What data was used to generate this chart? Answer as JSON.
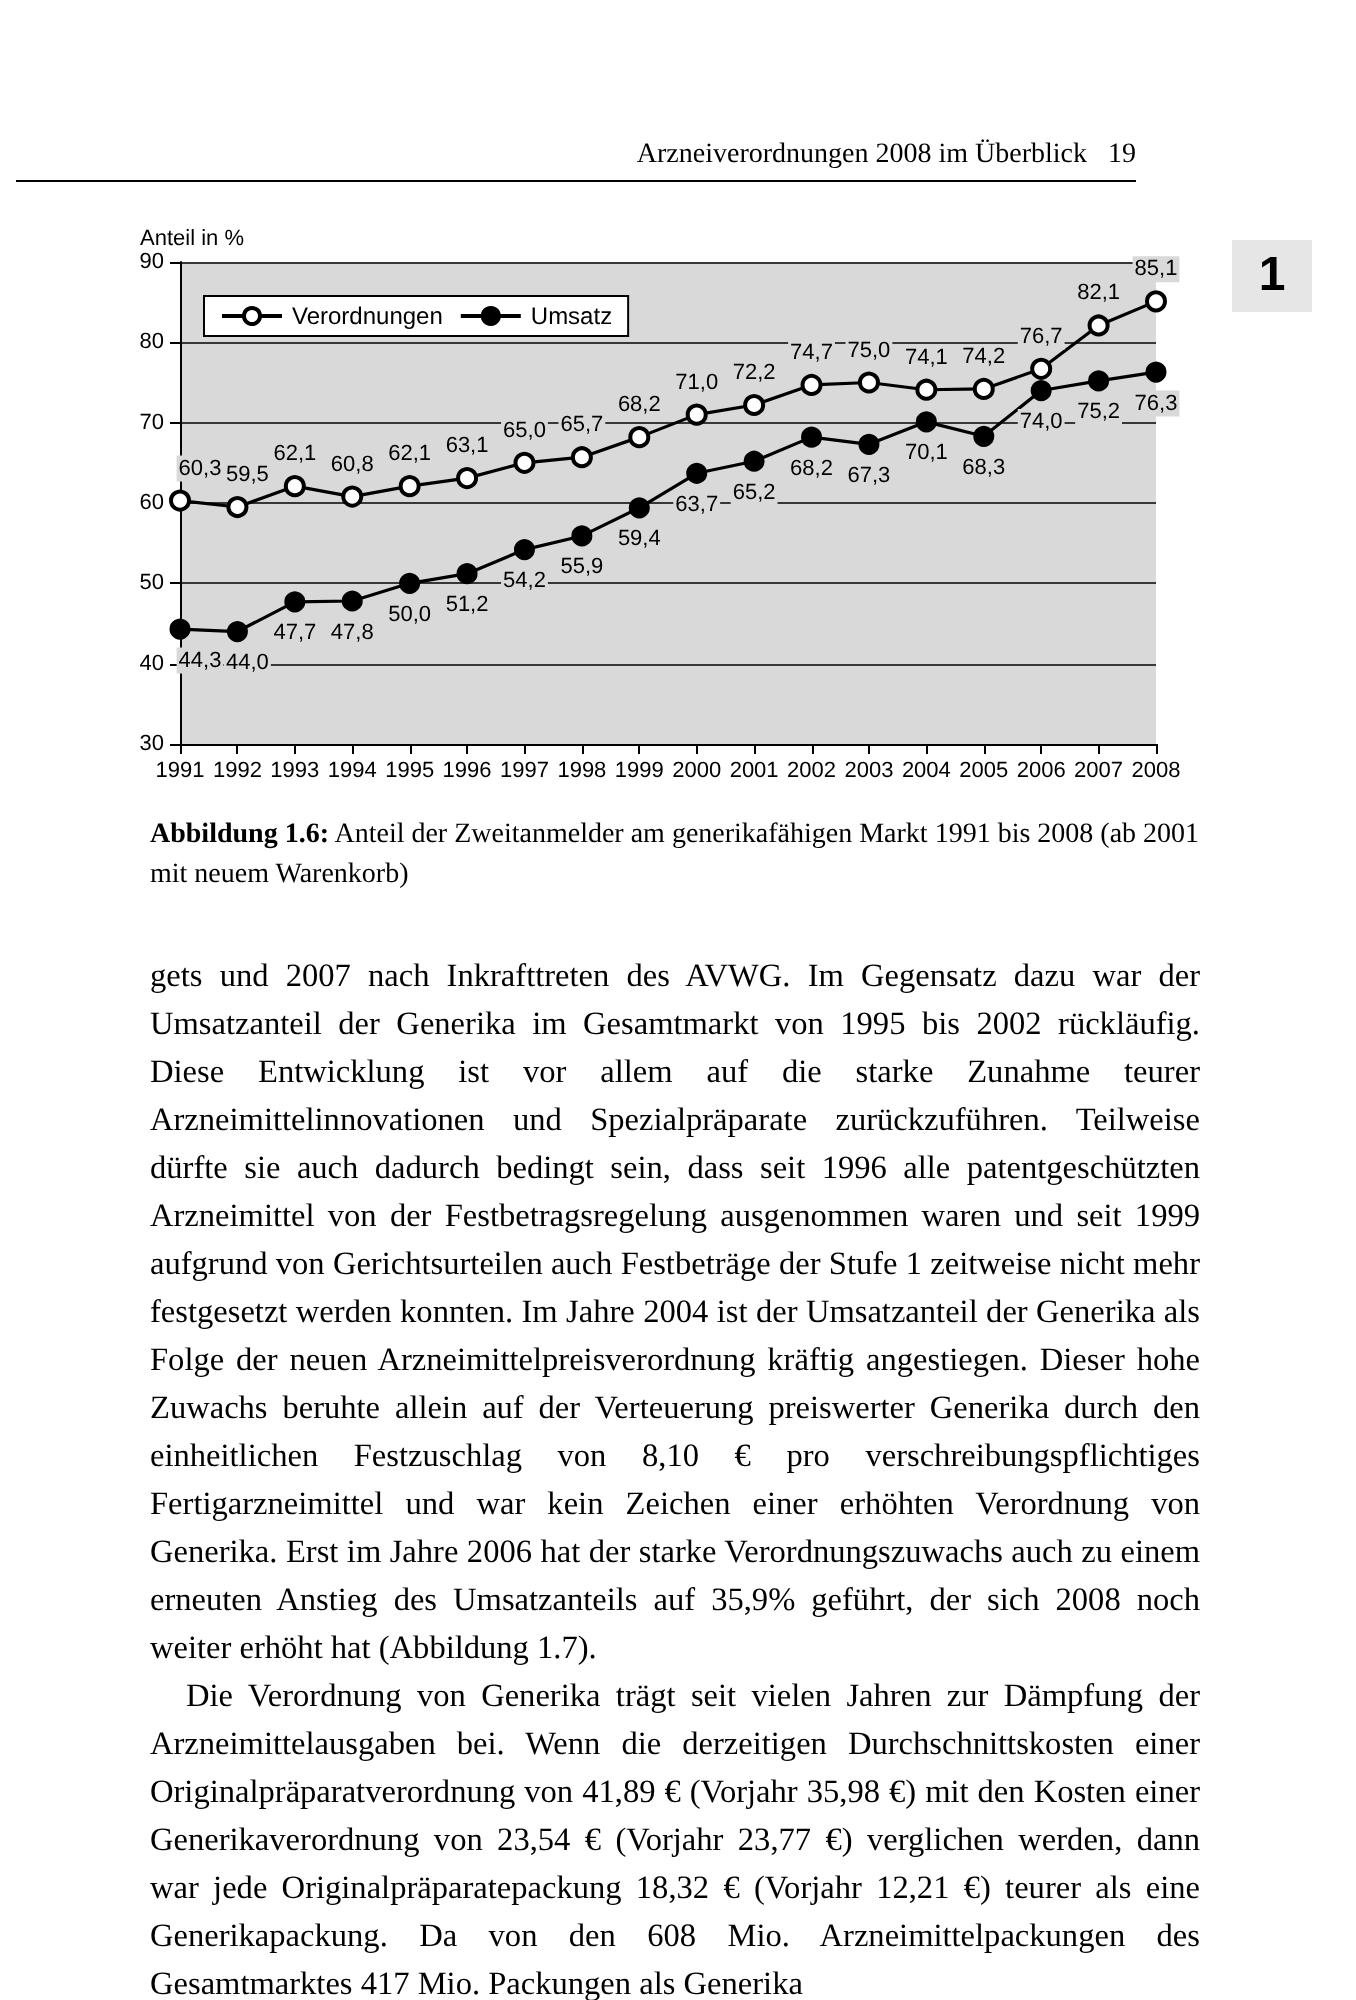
{
  "chart_data": {
    "type": "line",
    "ylabel": "Anteil in %",
    "categories": [
      "1991",
      "1992",
      "1993",
      "1994",
      "1995",
      "1996",
      "1997",
      "1998",
      "1999",
      "2000",
      "2001",
      "2002",
      "2003",
      "2004",
      "2005",
      "2006",
      "2007",
      "2008"
    ],
    "series": [
      {
        "name": "Verordnungen",
        "color": "#000000",
        "values": [
          60.3,
          59.5,
          62.1,
          60.8,
          62.1,
          63.1,
          65.0,
          65.7,
          68.2,
          71.0,
          72.2,
          74.7,
          75.0,
          74.1,
          74.2,
          76.7,
          82.1,
          85.1
        ],
        "value_labels": [
          "60,3",
          "59,5",
          "62,1",
          "60,8",
          "62,1",
          "63,1",
          "65,0",
          "65,7",
          "68,2",
          "71,0",
          "72,2",
          "74,7",
          "75,0",
          "74,1",
          "74,2",
          "76,7",
          "82,1",
          "85,1"
        ]
      },
      {
        "name": "Umsatz",
        "color": "#000000",
        "values": [
          44.3,
          44.0,
          47.7,
          47.8,
          50.0,
          51.2,
          54.2,
          55.9,
          59.4,
          63.7,
          65.2,
          68.2,
          67.3,
          70.1,
          68.3,
          74.0,
          75.2,
          76.3
        ],
        "value_labels": [
          "44,3",
          "44,0",
          "47,7",
          "47,8",
          "50,0",
          "51,2",
          "54,2",
          "55,9",
          "59,4",
          "63,7",
          "65,2",
          "68,2",
          "67,3",
          "70,1",
          "68,3",
          "74,0",
          "75,2",
          "76,3"
        ]
      }
    ],
    "ylim": [
      30,
      90
    ],
    "yticks": [
      30,
      40,
      50,
      60,
      70,
      80,
      90
    ],
    "grid": "y",
    "legend": "top left",
    "marker": "circle",
    "line_style": "solid",
    "annotations": [
      "Arzneiverordnungen 2008 im Überblick   19",
      "1",
      "Abbildung 1.6: Anteil der Zweitanmelder am generikafähigen Markt 1991 bis 2008 (ab 2001 mit neuem Warenkorb)",
      "gets und 2007 nach Inkrafttreten des AVWG. Im Gegensatz dazu war der Umsatzanteil der Generika im Gesamtmarkt von 1995 bis 2002 rückläufig. Diese Entwicklung ist vor allem auf die starke Zunahme teurer Arzneimittelinnovationen und Spezialpräparate zurückzuführen. Teilweise dürfte sie auch dadurch bedingt sein, dass seit 1996 alle patentgeschützten Arzneimittel von der Festbetragsregelung ausgenommen waren und seit 1999 aufgrund von Gerichtsurteilen auch Festbeträge der Stufe 1 zeitweise nicht mehr festgesetzt werden konnten. Im Jahre 2004 ist der Umsatzanteil der Generika als Folge der neuen Arzneimittelpreisverordnung kräftig angestiegen. Dieser hohe Zuwachs beruhte allein auf der Verteuerung preiswerter Generika durch den einheitlichen Festzuschlag von 8,10 € pro verschreibungspflichtiges Fertigarzneimittel und war kein Zeichen einer erhöhten Verordnung von Generika. Erst im Jahre 2006 hat der starke Verordnungszuwachs auch zu einem erneuten Anstieg des Umsatzanteils auf 35,9% geführt, der sich 2008 noch weiter erhöht hat (Abbildung 1.7).",
      "Die Verordnung von Generika trägt seit vielen Jahren zur Dämpfung der Arzneimittelausgaben bei. Wenn die derzeitigen Durchschnittskosten einer Originalpräparatverordnung von 41,89 € (Vorjahr 35,98 €) mit den Kosten einer Generikaverordnung von 23,54 € (Vorjahr 23,77 €) verglichen werden, dann war jede Originalpräparatepackung 18,32 € (Vorjahr 12,21 €) teurer als eine Generikapackung. Da von den 608 Mio. Arzneimittelpackungen des Gesamtmarktes 417 Mio. Packungen als Generika"
    ]
  }
}
